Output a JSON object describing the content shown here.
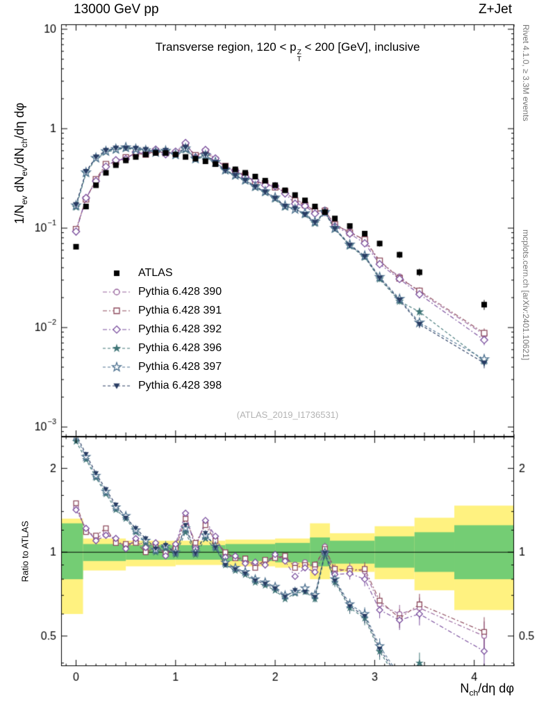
{
  "header": {
    "left": "13000 GeV pp",
    "right": "Z+Jet"
  },
  "watermark": "(ATLAS_2019_I1736531)",
  "side_notes": {
    "top": "Rivet 4.1.0, ≥ 3.3M events",
    "bottom": "mcplots.cern.ch [arXiv:2401.10621]"
  },
  "chart_data": {
    "type": "line",
    "title_runs": [
      {
        "t": "Transverse region, 120 < p"
      },
      {
        "stack": [
          "Z",
          "T"
        ]
      },
      {
        "t": " < 200 [GeV], inclusive"
      }
    ],
    "ylabel_runs": [
      {
        "t": "1/N"
      },
      {
        "sub": "ev"
      },
      {
        "t": " dN"
      },
      {
        "sub": "ev"
      },
      {
        "t": "/dN"
      },
      {
        "sub": "ch"
      },
      {
        "t": "/dη dφ"
      }
    ],
    "xlabel_runs": [
      {
        "t": "N"
      },
      {
        "sub": "ch"
      },
      {
        "t": "/dη dφ"
      }
    ],
    "ratio_label": "Ratio to ATLAS",
    "x_axis": {
      "min": -0.15,
      "max": 4.4,
      "ticks": [
        {
          "v": 0,
          "t": "0"
        },
        {
          "v": 1,
          "t": "1"
        },
        {
          "v": 2,
          "t": "2"
        },
        {
          "v": 3,
          "t": "3"
        },
        {
          "v": 4,
          "t": "4"
        }
      ]
    },
    "main_axis": {
      "scale": "log",
      "min": 0.0008,
      "max": 11.2,
      "ticks": [
        {
          "v": 10,
          "t": "10"
        },
        {
          "v": 1,
          "t": "1"
        },
        {
          "v": 0.1,
          "t": "10",
          "e": "−1"
        },
        {
          "v": 0.01,
          "t": "10",
          "e": "−2"
        },
        {
          "v": 0.001,
          "t": "10",
          "e": "−3"
        }
      ]
    },
    "ratio_axis": {
      "scale": "log",
      "min": 0.39,
      "max": 2.6,
      "unity_line": 1,
      "ticks": [
        {
          "v": 2,
          "t": "2"
        },
        {
          "v": 1,
          "t": "1"
        },
        {
          "v": 0.5,
          "t": "0.5"
        }
      ],
      "minor": [
        0.4,
        0.6,
        0.7,
        0.8,
        0.9,
        1.2,
        1.4,
        1.6,
        1.8,
        2.2,
        2.4
      ]
    },
    "x": [
      0,
      0.1,
      0.2,
      0.3,
      0.4,
      0.5,
      0.6,
      0.7,
      0.8,
      0.9,
      1.0,
      1.1,
      1.2,
      1.3,
      1.4,
      1.5,
      1.6,
      1.7,
      1.8,
      1.9,
      2.0,
      2.1,
      2.2,
      2.3,
      2.4,
      2.5,
      2.6,
      2.75,
      2.9,
      3.05,
      3.25,
      3.45,
      4.1
    ],
    "series": [
      {
        "name": "ATLAS",
        "marker": "square",
        "filled": true,
        "color": "#000000",
        "line": "none",
        "y": [
          0.065,
          0.165,
          0.27,
          0.36,
          0.43,
          0.48,
          0.52,
          0.55,
          0.57,
          0.57,
          0.55,
          0.52,
          0.5,
          0.47,
          0.44,
          0.42,
          0.39,
          0.36,
          0.33,
          0.3,
          0.27,
          0.24,
          0.215,
          0.19,
          0.165,
          0.145,
          0.125,
          0.105,
          0.088,
          0.07,
          0.054,
          0.036,
          0.017
        ]
      },
      {
        "name": "Pythia 6.428 390",
        "marker": "circle",
        "filled": false,
        "color": "#96619b",
        "dash": [
          6,
          3,
          2,
          3
        ],
        "y": [
          0.094,
          0.198,
          0.302,
          0.425,
          0.473,
          0.504,
          0.572,
          0.561,
          0.604,
          0.559,
          0.578,
          0.702,
          0.525,
          0.602,
          0.493,
          0.412,
          0.374,
          0.335,
          0.297,
          0.279,
          0.262,
          0.228,
          0.194,
          0.175,
          0.145,
          0.152,
          0.106,
          0.092,
          0.075,
          0.0455,
          0.0324,
          0.0227,
          0.0085
        ]
      },
      {
        "name": "Pythia 6.428 391",
        "marker": "square",
        "filled": false,
        "color": "#8d4a5c",
        "dash": [
          6,
          3,
          2,
          3
        ],
        "y": [
          0.0975,
          0.195,
          0.31,
          0.439,
          0.464,
          0.514,
          0.562,
          0.55,
          0.593,
          0.57,
          0.567,
          0.686,
          0.54,
          0.588,
          0.484,
          0.42,
          0.371,
          0.342,
          0.29,
          0.282,
          0.257,
          0.233,
          0.189,
          0.171,
          0.149,
          0.149,
          0.109,
          0.09,
          0.0766,
          0.0469,
          0.0313,
          0.0234,
          0.0088
        ]
      },
      {
        "name": "Pythia 6.428 392",
        "marker": "diamond",
        "filled": false,
        "color": "#7a4e9e",
        "dash": [
          6,
          3,
          2,
          3
        ],
        "y": [
          0.0923,
          0.201,
          0.297,
          0.414,
          0.482,
          0.494,
          0.582,
          0.572,
          0.616,
          0.553,
          0.588,
          0.718,
          0.515,
          0.611,
          0.502,
          0.403,
          0.378,
          0.328,
          0.304,
          0.27,
          0.265,
          0.223,
          0.176,
          0.167,
          0.14,
          0.145,
          0.104,
          0.088,
          0.0704,
          0.0434,
          0.0308,
          0.0216,
          0.0075
        ]
      },
      {
        "name": "Pythia 6.428 396",
        "marker": "star",
        "filled": true,
        "color": "#3e7476",
        "dash": [
          4,
          3
        ],
        "y": [
          0.1625,
          0.355,
          0.5,
          0.583,
          0.611,
          0.634,
          0.614,
          0.594,
          0.57,
          0.587,
          0.539,
          0.614,
          0.49,
          0.526,
          0.453,
          0.378,
          0.335,
          0.299,
          0.257,
          0.228,
          0.197,
          0.163,
          0.153,
          0.137,
          0.112,
          0.142,
          0.0975,
          0.0662,
          0.051,
          0.0308,
          0.0184,
          0.0144,
          0.0046
        ]
      },
      {
        "name": "Pythia 6.428 397",
        "marker": "star",
        "filled": false,
        "color": "#4f7391",
        "dash": [
          4,
          3
        ],
        "y": [
          0.169,
          0.363,
          0.508,
          0.594,
          0.624,
          0.648,
          0.624,
          0.605,
          0.581,
          0.599,
          0.55,
          0.634,
          0.5,
          0.541,
          0.462,
          0.386,
          0.343,
          0.306,
          0.264,
          0.234,
          0.203,
          0.168,
          0.155,
          0.141,
          0.116,
          0.145,
          0.1,
          0.0683,
          0.0528,
          0.0322,
          0.0194,
          0.0112,
          0.0048
        ]
      },
      {
        "name": "Pythia 6.428 398",
        "marker": "triangle-down",
        "filled": true,
        "color": "#283c63",
        "dash": [
          4,
          3
        ],
        "y": [
          0.172,
          0.371,
          0.518,
          0.605,
          0.636,
          0.638,
          0.634,
          0.616,
          0.587,
          0.604,
          0.545,
          0.65,
          0.495,
          0.55,
          0.458,
          0.378,
          0.339,
          0.302,
          0.261,
          0.231,
          0.2,
          0.166,
          0.157,
          0.137,
          0.114,
          0.144,
          0.0988,
          0.0672,
          0.0519,
          0.0315,
          0.0189,
          0.0108,
          0.0044
        ]
      }
    ],
    "bands": {
      "yellow": {
        "color": "#fff280",
        "segments": [
          [
            -0.15,
            0.07,
            0.6,
            1.32
          ],
          [
            0.07,
            0.5,
            0.86,
            1.12
          ],
          [
            0.5,
            1.0,
            0.89,
            1.1
          ],
          [
            1.0,
            1.5,
            0.9,
            1.1
          ],
          [
            1.5,
            2.0,
            0.89,
            1.11
          ],
          [
            2.0,
            2.35,
            0.88,
            1.12
          ],
          [
            2.35,
            2.55,
            0.8,
            1.27
          ],
          [
            2.55,
            3.0,
            0.85,
            1.17
          ],
          [
            3.0,
            3.4,
            0.8,
            1.24
          ],
          [
            3.4,
            3.8,
            0.73,
            1.33
          ],
          [
            3.8,
            4.4,
            0.62,
            1.47
          ]
        ]
      },
      "green": {
        "color": "#74cd74",
        "segments": [
          [
            -0.15,
            0.07,
            0.8,
            1.27
          ],
          [
            0.07,
            0.5,
            0.93,
            1.07
          ],
          [
            0.5,
            1.0,
            0.94,
            1.06
          ],
          [
            1.0,
            1.5,
            0.94,
            1.06
          ],
          [
            1.5,
            2.0,
            0.93,
            1.07
          ],
          [
            2.0,
            2.35,
            0.92,
            1.08
          ],
          [
            2.35,
            2.55,
            0.89,
            1.13
          ],
          [
            2.55,
            3.0,
            0.91,
            1.1
          ],
          [
            3.0,
            3.4,
            0.88,
            1.14
          ],
          [
            3.4,
            3.8,
            0.85,
            1.18
          ],
          [
            3.8,
            4.4,
            0.8,
            1.25
          ]
        ]
      }
    }
  }
}
